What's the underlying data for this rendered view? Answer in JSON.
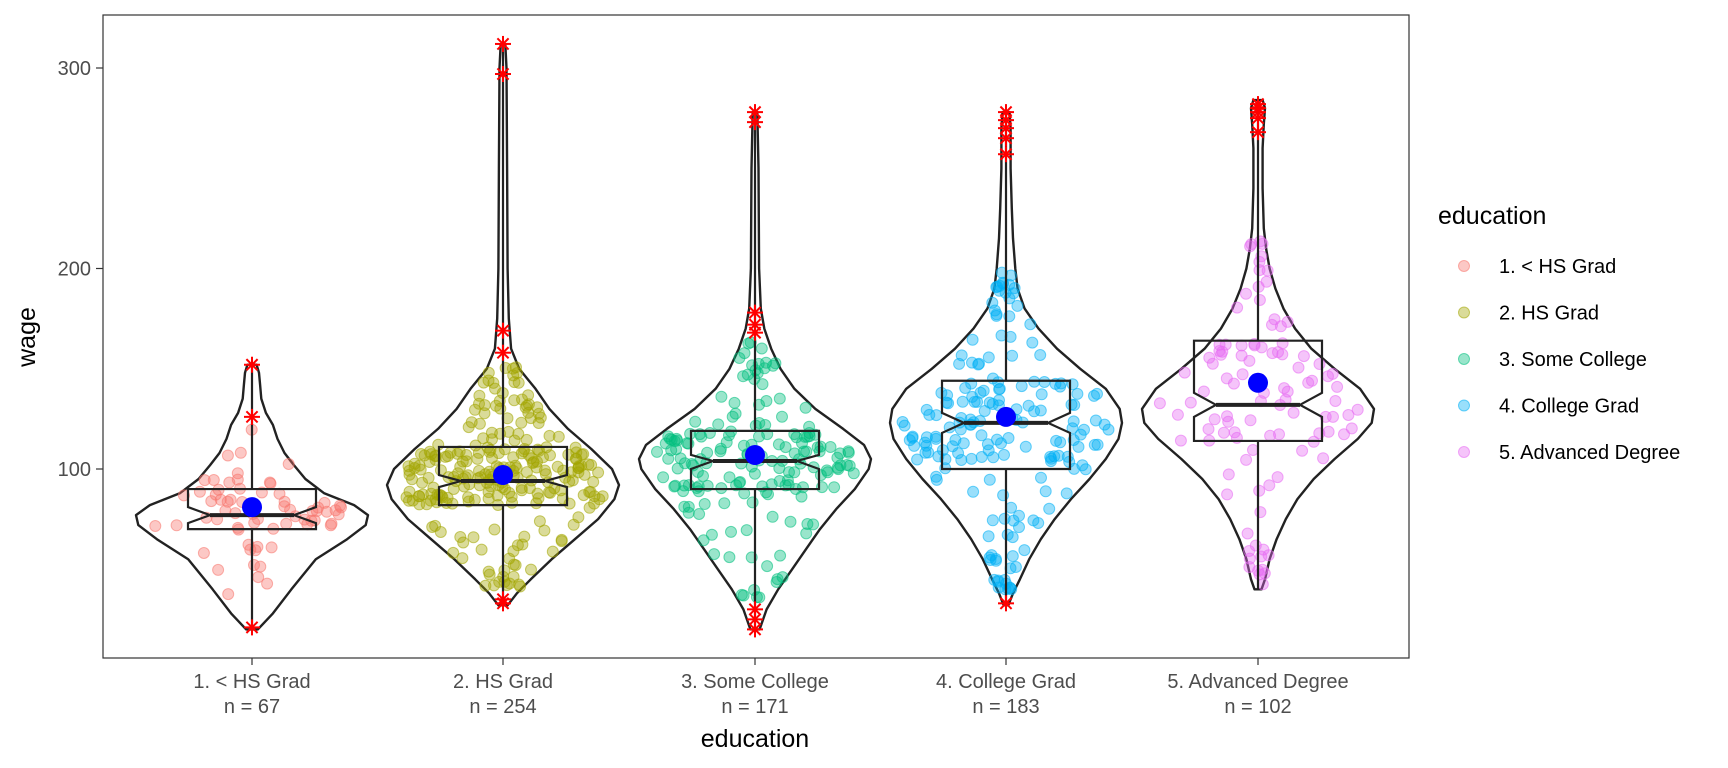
{
  "chart_data": {
    "type": "violin",
    "xlabel": "education",
    "ylabel": "wage",
    "ylim": [
      10,
      325
    ],
    "yticks": [
      100,
      200,
      300
    ],
    "grid": false,
    "legend": {
      "title": "education",
      "position": "right"
    },
    "categories": [
      {
        "label": "1. < HS Grad",
        "n_label": "n =  67",
        "n": 67,
        "color": "#F8766D",
        "box": {
          "q1": 70,
          "median": 77,
          "q3": 90,
          "notch_low": 73,
          "notch_high": 81,
          "whisker_low": 35,
          "whisker_high": 120
        },
        "mean": 81,
        "violin_profile": [
          [
            20,
            0.05
          ],
          [
            28,
            0.18
          ],
          [
            40,
            0.34
          ],
          [
            55,
            0.55
          ],
          [
            65,
            0.82
          ],
          [
            72,
            0.98
          ],
          [
            77,
            1.0
          ],
          [
            82,
            0.88
          ],
          [
            88,
            0.62
          ],
          [
            95,
            0.46
          ],
          [
            102,
            0.36
          ],
          [
            108,
            0.28
          ],
          [
            115,
            0.22
          ],
          [
            122,
            0.18
          ],
          [
            128,
            0.12
          ],
          [
            135,
            0.08
          ],
          [
            142,
            0.07
          ],
          [
            148,
            0.06
          ],
          [
            152,
            0.04
          ]
        ],
        "outliers": [
          21,
          126,
          152
        ],
        "jitter_range": [
          35,
          120
        ]
      },
      {
        "label": "2. HS Grad",
        "n_label": "n =  254",
        "n": 254,
        "color": "#A3A500",
        "box": {
          "q1": 82,
          "median": 94,
          "q3": 111,
          "notch_low": 91,
          "notch_high": 97,
          "whisker_low": 35,
          "whisker_high": 155
        },
        "mean": 97,
        "violin_profile": [
          [
            32,
            0.04
          ],
          [
            38,
            0.12
          ],
          [
            45,
            0.24
          ],
          [
            55,
            0.42
          ],
          [
            65,
            0.62
          ],
          [
            75,
            0.82
          ],
          [
            85,
            0.96
          ],
          [
            92,
            1.0
          ],
          [
            100,
            0.94
          ],
          [
            110,
            0.76
          ],
          [
            120,
            0.56
          ],
          [
            130,
            0.4
          ],
          [
            140,
            0.28
          ],
          [
            150,
            0.14
          ],
          [
            160,
            0.07
          ],
          [
            175,
            0.05
          ],
          [
            200,
            0.04
          ],
          [
            250,
            0.035
          ],
          [
            300,
            0.03
          ],
          [
            312,
            0.02
          ]
        ],
        "outliers": [
          33,
          35,
          158,
          169,
          297,
          312
        ],
        "jitter_range": [
          40,
          155
        ]
      },
      {
        "label": "3. Some College",
        "n_label": "n =  171",
        "n": 171,
        "color": "#00BF7D",
        "box": {
          "q1": 90,
          "median": 104,
          "q3": 119,
          "notch_low": 100,
          "notch_high": 107,
          "whisker_low": 40,
          "whisker_high": 165
        },
        "mean": 107,
        "violin_profile": [
          [
            20,
            0.04
          ],
          [
            30,
            0.1
          ],
          [
            40,
            0.2
          ],
          [
            50,
            0.32
          ],
          [
            60,
            0.44
          ],
          [
            70,
            0.56
          ],
          [
            80,
            0.7
          ],
          [
            90,
            0.86
          ],
          [
            100,
            0.98
          ],
          [
            105,
            1.0
          ],
          [
            112,
            0.94
          ],
          [
            120,
            0.76
          ],
          [
            130,
            0.52
          ],
          [
            140,
            0.34
          ],
          [
            150,
            0.22
          ],
          [
            160,
            0.14
          ],
          [
            170,
            0.08
          ],
          [
            180,
            0.05
          ],
          [
            200,
            0.035
          ],
          [
            250,
            0.03
          ],
          [
            278,
            0.02
          ]
        ],
        "outliers": [
          20,
          25,
          30,
          168,
          172,
          178,
          273,
          278
        ],
        "jitter_range": [
          35,
          165
        ]
      },
      {
        "label": "4. College Grad",
        "n_label": "n =  183",
        "n": 183,
        "color": "#00B0F6",
        "box": {
          "q1": 100,
          "median": 123,
          "q3": 144,
          "notch_low": 118,
          "notch_high": 128,
          "whisker_low": 35,
          "whisker_high": 210
        },
        "mean": 126,
        "violin_profile": [
          [
            32,
            0.02
          ],
          [
            38,
            0.06
          ],
          [
            45,
            0.12
          ],
          [
            55,
            0.2
          ],
          [
            65,
            0.3
          ],
          [
            75,
            0.42
          ],
          [
            85,
            0.56
          ],
          [
            95,
            0.72
          ],
          [
            105,
            0.86
          ],
          [
            115,
            0.97
          ],
          [
            123,
            1.0
          ],
          [
            130,
            0.98
          ],
          [
            140,
            0.86
          ],
          [
            150,
            0.64
          ],
          [
            160,
            0.44
          ],
          [
            170,
            0.28
          ],
          [
            180,
            0.16
          ],
          [
            190,
            0.1
          ],
          [
            200,
            0.08
          ],
          [
            215,
            0.06
          ],
          [
            230,
            0.05
          ],
          [
            250,
            0.04
          ],
          [
            270,
            0.04
          ],
          [
            278,
            0.03
          ]
        ],
        "outliers": [
          33,
          257,
          265,
          270,
          274,
          278
        ],
        "jitter_range": [
          38,
          200
        ]
      },
      {
        "label": "5. Advanced Degree",
        "n_label": "n =  102",
        "n": 102,
        "color": "#E76BF3",
        "box": {
          "q1": 114,
          "median": 132,
          "q3": 164,
          "notch_low": 126,
          "notch_high": 138,
          "whisker_low": 40,
          "whisker_high": 215
        },
        "mean": 143,
        "violin_profile": [
          [
            40,
            0.03
          ],
          [
            45,
            0.06
          ],
          [
            55,
            0.1
          ],
          [
            65,
            0.16
          ],
          [
            75,
            0.24
          ],
          [
            85,
            0.34
          ],
          [
            95,
            0.48
          ],
          [
            105,
            0.66
          ],
          [
            115,
            0.86
          ],
          [
            123,
            0.98
          ],
          [
            130,
            1.0
          ],
          [
            140,
            0.88
          ],
          [
            150,
            0.66
          ],
          [
            160,
            0.46
          ],
          [
            170,
            0.32
          ],
          [
            180,
            0.22
          ],
          [
            190,
            0.15
          ],
          [
            200,
            0.1
          ],
          [
            210,
            0.07
          ],
          [
            220,
            0.05
          ],
          [
            240,
            0.04
          ],
          [
            260,
            0.04
          ],
          [
            272,
            0.05
          ],
          [
            280,
            0.06
          ],
          [
            284,
            0.04
          ]
        ],
        "outliers": [
          268,
          275,
          278,
          280,
          282
        ],
        "jitter_range": [
          40,
          215
        ]
      }
    ],
    "mean_marker_color": "#0000FF",
    "outlier_marker_color": "#FF0000"
  }
}
